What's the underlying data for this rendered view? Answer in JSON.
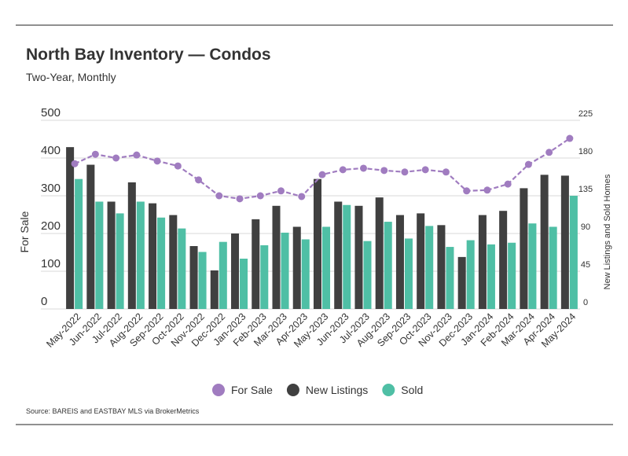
{
  "chart_data": {
    "type": "combo",
    "title": "North Bay Inventory — Condos",
    "subtitle": "Two-Year, Monthly",
    "y_label": "For Sale",
    "y2_label": "New Listings and Sold Homes",
    "source": "Source:  BAREIS and EASTBAY MLS via BrokerMetrics",
    "categories": [
      "May-2022",
      "Jun-2022",
      "Jul-2022",
      "Aug-2022",
      "Sep-2022",
      "Oct-2022",
      "Nov-2022",
      "Dec-2022",
      "Jan-2023",
      "Feb-2023",
      "Mar-2023",
      "Apr-2023",
      "May-2023",
      "Jun-2023",
      "Jul-2023",
      "Aug-2023",
      "Sep-2023",
      "Oct-2023",
      "Nov-2023",
      "Dec-2023",
      "Jan-2024",
      "Feb-2024",
      "Mar-2024",
      "Apr-2024",
      "May-2024"
    ],
    "series": [
      {
        "name": "For Sale",
        "type": "line",
        "color": "#a07cc0",
        "values": [
          385,
          410,
          400,
          408,
          392,
          379,
          342,
          300,
          292,
          300,
          313,
          298,
          356,
          369,
          373,
          367,
          363,
          369,
          363,
          313,
          315,
          331,
          383,
          415,
          452
        ]
      },
      {
        "name": "New Listings",
        "type": "bar",
        "axis": "y2",
        "color": "#404040",
        "values": [
          193,
          172,
          128,
          151,
          126,
          112,
          75,
          46,
          90,
          107,
          123,
          98,
          155,
          128,
          123,
          133,
          112,
          114,
          100,
          62,
          112,
          117,
          144,
          160,
          159
        ]
      },
      {
        "name": "Sold",
        "type": "bar",
        "axis": "y2",
        "color": "#4fbfa5",
        "values": [
          155,
          128,
          114,
          128,
          109,
          96,
          68,
          80,
          60,
          76,
          91,
          83,
          98,
          124,
          81,
          104,
          84,
          99,
          74,
          82,
          77,
          79,
          102,
          98,
          135
        ]
      }
    ],
    "ylim": [
      0,
      500
    ],
    "yticks": [
      0,
      100,
      200,
      300,
      400,
      500
    ],
    "y2lim": [
      0,
      225
    ],
    "y2ticks": [
      0,
      45,
      90,
      135,
      180,
      225
    ],
    "grid": true,
    "legend": "bottom"
  }
}
